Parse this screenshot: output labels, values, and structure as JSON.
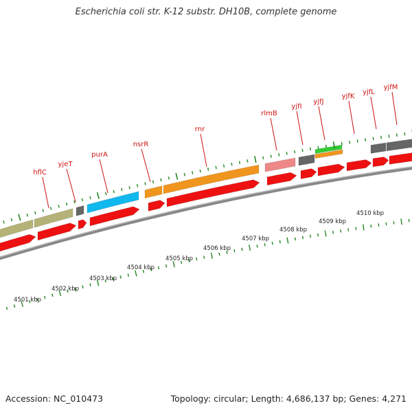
{
  "title": "Escherichia coli str. K-12 substr. DH10B, complete genome",
  "footer": {
    "accession": "Accession: NC_010473",
    "summary": "Topology: circular; Length: 4,686,137 bp; Genes: 4,271"
  },
  "colors": {
    "cds_red": "#ee1111",
    "backbone": "#888888",
    "tick_green": "#228822",
    "label_red": "#cc1111",
    "khaki": "#b5b277",
    "gray": "#666666",
    "blue": "#11b8ee",
    "orange": "#f0961e",
    "pink": "#ee8888",
    "green": "#33cc33"
  },
  "gene_labels": [
    "hflC",
    "yjeT",
    "purA",
    "nsrR",
    "rnr",
    "rlmB",
    "yjfI",
    "yjfJ",
    "yjfK",
    "yjfL",
    "yjfM"
  ],
  "scale_labels": [
    "4501 kbp",
    "4502 kbp",
    "4503 kbp",
    "4504 kbp",
    "4505 kbp",
    "4506 kbp",
    "4507 kbp",
    "4508 kbp",
    "4509 kbp",
    "4510 kbp"
  ]
}
